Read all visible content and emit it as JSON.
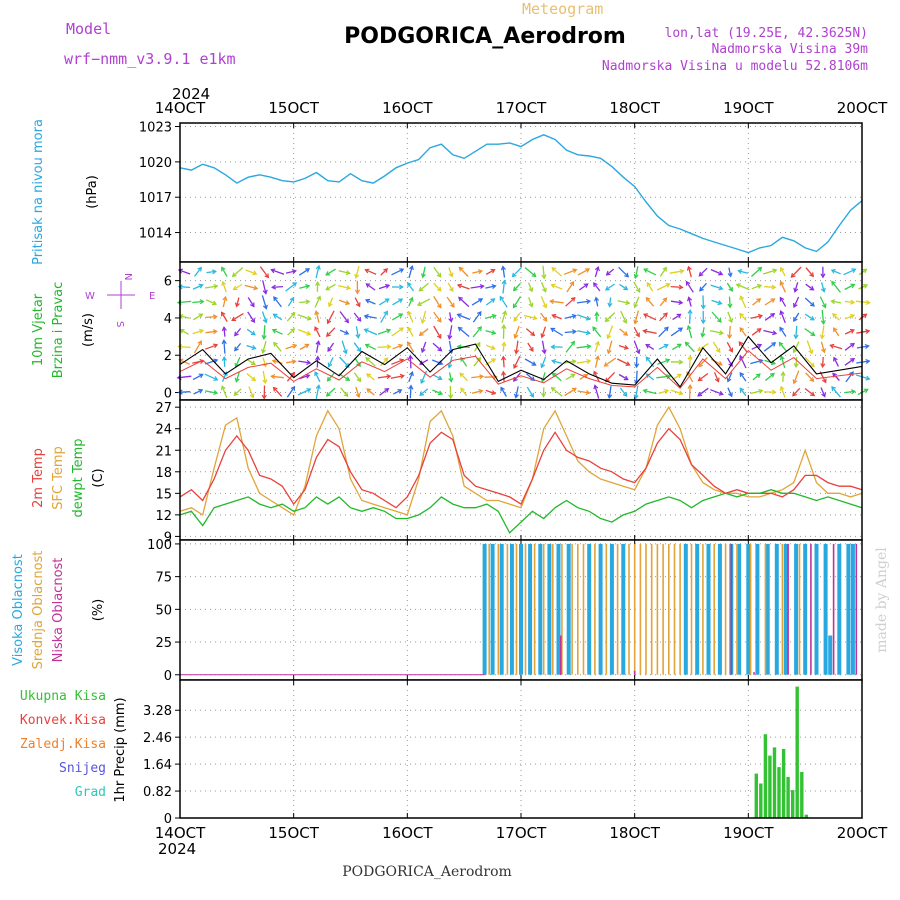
{
  "header": {
    "model_label": "Model",
    "model_name": "wrf−nmm_v3.9.1  e1km",
    "meteogram_label": "Meteogram",
    "station_title": "PODGORICA_Aerodrom",
    "lonlat": "lon,lat (19.25E, 42.3625N)",
    "altitude": "Nadmorska Visina 39m",
    "model_altitude": "Nadmorska Visina u modelu 52.8106m",
    "footer": "PODGORICA_Aerodrom",
    "credit": "made by Angel"
  },
  "time_axis": {
    "year": "2024",
    "labels": [
      "14OCT",
      "15OCT",
      "16OCT",
      "17OCT",
      "18OCT",
      "19OCT",
      "20OCT"
    ],
    "start_day": 14,
    "end_day": 20
  },
  "colors": {
    "pressure": "#29a8e0",
    "temp2m": "#e8413b",
    "sfc": "#e0a43a",
    "dew": "#22b82a",
    "high_cloud": "#29a8e0",
    "mid_cloud": "#e0a43a",
    "low_cloud": "#c0329a",
    "precip": "#33c233",
    "compass": "#b040d0"
  },
  "chart_data": [
    {
      "panel": "pressure",
      "type": "line",
      "ylabel_1": "Pritisak na nivou mora",
      "ylabel_2": "(hPa)",
      "ylim": [
        1011.5,
        1023.3
      ],
      "yticks": [
        1014,
        1017,
        1020,
        1023
      ],
      "ytick_labels": [
        "1014",
        "1017",
        "1020",
        "1023"
      ],
      "grid": true,
      "series": [
        {
          "x": [
            14.0,
            14.1,
            14.2,
            14.3,
            14.4,
            14.5,
            14.6,
            14.7,
            14.8,
            14.9,
            15.0,
            15.1,
            15.2,
            15.3,
            15.4,
            15.5,
            15.6,
            15.7,
            15.8,
            15.9,
            16.0,
            16.1,
            16.2,
            16.3,
            16.4,
            16.5,
            16.6,
            16.7,
            16.8,
            16.9,
            17.0,
            17.1,
            17.2,
            17.3,
            17.4,
            17.5,
            17.6,
            17.7,
            17.8,
            17.9,
            18.0,
            18.1,
            18.2,
            18.3,
            18.4,
            18.5,
            18.6,
            18.7,
            18.8,
            18.9,
            19.0,
            19.1,
            19.2,
            19.3,
            19.4,
            19.5,
            19.6,
            19.7,
            19.8,
            19.9,
            20.0
          ],
          "y": [
            1019.5,
            1019.3,
            1019.8,
            1019.5,
            1018.9,
            1018.2,
            1018.7,
            1018.9,
            1018.7,
            1018.4,
            1018.3,
            1018.6,
            1019.1,
            1018.4,
            1018.3,
            1019.0,
            1018.4,
            1018.2,
            1018.8,
            1019.5,
            1019.9,
            1020.2,
            1021.2,
            1021.5,
            1020.6,
            1020.3,
            1020.9,
            1021.5,
            1021.5,
            1021.6,
            1021.3,
            1021.9,
            1022.3,
            1021.9,
            1021.0,
            1020.6,
            1020.5,
            1020.3,
            1019.6,
            1018.7,
            1017.9,
            1016.6,
            1015.4,
            1014.6,
            1014.3,
            1013.9,
            1013.5,
            1013.2,
            1012.9,
            1012.6,
            1012.3,
            1012.7,
            1012.9,
            1013.6,
            1013.3,
            1012.7,
            1012.4,
            1013.2,
            1014.6,
            1015.9,
            1016.7
          ]
        }
      ]
    },
    {
      "panel": "wind",
      "type": "line",
      "ylabel_1": "10m Vjetar",
      "ylabel_2": "Brzina i Pravac",
      "ylabel_3": "(m/s)",
      "compass_labels": {
        "north": "N",
        "south": "S",
        "east": "E",
        "west": "W"
      },
      "ylim": [
        -0.4,
        7.0
      ],
      "yticks": [
        0,
        2,
        4,
        6
      ],
      "ytick_labels": [
        "0",
        "2",
        "4",
        "6"
      ],
      "grid": true,
      "series": [
        {
          "x": [
            14.0,
            14.2,
            14.4,
            14.6,
            14.8,
            15.0,
            15.2,
            15.4,
            15.6,
            15.8,
            16.0,
            16.2,
            16.4,
            16.6,
            16.8,
            17.0,
            17.2,
            17.4,
            17.6,
            17.8,
            18.0,
            18.2,
            18.4,
            18.6,
            18.8,
            19.0,
            19.2,
            19.4,
            19.6,
            19.8,
            20.0
          ],
          "y": [
            1.5,
            2.3,
            1.0,
            1.8,
            2.1,
            0.8,
            1.7,
            0.9,
            2.2,
            1.5,
            2.4,
            1.1,
            2.3,
            2.6,
            0.6,
            1.2,
            0.7,
            1.7,
            1.0,
            0.5,
            0.4,
            1.8,
            0.3,
            2.4,
            1.0,
            3.0,
            1.6,
            2.5,
            1.0,
            1.2,
            1.4
          ]
        }
      ],
      "dominant_directions_note": "",
      "arrow_colors": [
        "#8a2be2",
        "#2e6fe8",
        "#29b8e0",
        "#2fcf4a",
        "#9bd52a",
        "#e0d020",
        "#f0902a",
        "#e8413b"
      ]
    },
    {
      "panel": "temperature",
      "type": "line",
      "ylabel_1": "2m Temp",
      "ylabel_2": "SFC Temp",
      "ylabel_3": "dewpt Temp",
      "ylabel_4": "(C)",
      "ylim": [
        8.5,
        28
      ],
      "yticks": [
        9,
        12,
        15,
        18,
        21,
        24,
        27
      ],
      "ytick_labels": [
        "9",
        "12",
        "15",
        "18",
        "21",
        "24",
        "27"
      ],
      "grid": true,
      "series": [
        {
          "name": "2m Temp",
          "x": [
            14.0,
            14.1,
            14.2,
            14.3,
            14.4,
            14.5,
            14.6,
            14.7,
            14.8,
            14.9,
            15.0,
            15.1,
            15.2,
            15.3,
            15.4,
            15.5,
            15.6,
            15.7,
            15.8,
            15.9,
            16.0,
            16.1,
            16.2,
            16.3,
            16.4,
            16.5,
            16.6,
            16.7,
            16.8,
            16.9,
            17.0,
            17.1,
            17.2,
            17.3,
            17.4,
            17.5,
            17.6,
            17.7,
            17.8,
            17.9,
            18.0,
            18.1,
            18.2,
            18.3,
            18.4,
            18.5,
            18.6,
            18.7,
            18.8,
            18.9,
            19.0,
            19.1,
            19.2,
            19.3,
            19.4,
            19.5,
            19.6,
            19.7,
            19.8,
            19.9,
            20.0
          ],
          "y": [
            14.5,
            15.5,
            14.0,
            17.0,
            21.0,
            23.0,
            21.0,
            17.5,
            17.0,
            16.0,
            13.5,
            15.5,
            20.0,
            22.5,
            21.5,
            18.0,
            15.5,
            15.0,
            14.0,
            13.0,
            14.5,
            17.5,
            22.0,
            23.5,
            22.5,
            17.5,
            16.0,
            15.5,
            15.0,
            14.5,
            13.5,
            17.0,
            21.0,
            23.5,
            21.0,
            20.0,
            19.5,
            18.5,
            18.0,
            17.0,
            16.5,
            18.5,
            22.0,
            24.0,
            22.5,
            19.0,
            17.5,
            16.0,
            15.0,
            15.5,
            15.0,
            15.0,
            15.0,
            14.5,
            15.5,
            17.5,
            17.5,
            16.5,
            16.0,
            16.0,
            15.5
          ]
        },
        {
          "name": "SFC Temp",
          "x": [
            14.0,
            14.1,
            14.2,
            14.3,
            14.4,
            14.5,
            14.6,
            14.7,
            14.8,
            14.9,
            15.0,
            15.1,
            15.2,
            15.3,
            15.4,
            15.5,
            15.6,
            15.7,
            15.8,
            15.9,
            16.0,
            16.1,
            16.2,
            16.3,
            16.4,
            16.5,
            16.6,
            16.7,
            16.8,
            16.9,
            17.0,
            17.1,
            17.2,
            17.3,
            17.4,
            17.5,
            17.6,
            17.7,
            17.8,
            17.9,
            18.0,
            18.1,
            18.2,
            18.3,
            18.4,
            18.5,
            18.6,
            18.7,
            18.8,
            18.9,
            19.0,
            19.1,
            19.2,
            19.3,
            19.4,
            19.5,
            19.6,
            19.7,
            19.8,
            19.9,
            20.0
          ],
          "y": [
            12.5,
            13.0,
            12.0,
            18.5,
            24.5,
            25.5,
            18.5,
            15.0,
            14.0,
            13.0,
            12.0,
            16.0,
            23.0,
            26.5,
            24.0,
            17.0,
            14.0,
            13.5,
            13.0,
            12.5,
            12.0,
            17.0,
            25.0,
            26.5,
            23.0,
            16.0,
            15.0,
            14.0,
            14.0,
            13.5,
            13.0,
            17.0,
            24.0,
            26.5,
            23.0,
            19.5,
            18.0,
            17.0,
            16.5,
            16.0,
            15.5,
            18.5,
            24.5,
            27.0,
            24.0,
            19.0,
            16.5,
            15.5,
            15.0,
            15.0,
            14.5,
            14.5,
            15.0,
            15.5,
            16.5,
            21.0,
            16.5,
            15.0,
            15.0,
            14.5,
            15.0
          ]
        },
        {
          "name": "dewpt Temp",
          "x": [
            14.0,
            14.1,
            14.2,
            14.3,
            14.4,
            14.5,
            14.6,
            14.7,
            14.8,
            14.9,
            15.0,
            15.1,
            15.2,
            15.3,
            15.4,
            15.5,
            15.6,
            15.7,
            15.8,
            15.9,
            16.0,
            16.1,
            16.2,
            16.3,
            16.4,
            16.5,
            16.6,
            16.7,
            16.8,
            16.9,
            17.0,
            17.1,
            17.2,
            17.3,
            17.4,
            17.5,
            17.6,
            17.7,
            17.8,
            17.9,
            18.0,
            18.1,
            18.2,
            18.3,
            18.4,
            18.5,
            18.6,
            18.7,
            18.8,
            18.9,
            19.0,
            19.1,
            19.2,
            19.3,
            19.4,
            19.5,
            19.6,
            19.7,
            19.8,
            19.9,
            20.0
          ],
          "y": [
            12.0,
            12.5,
            10.5,
            13.0,
            13.5,
            14.0,
            14.5,
            13.5,
            13.0,
            13.5,
            12.5,
            13.0,
            14.5,
            13.5,
            14.5,
            13.0,
            12.5,
            13.0,
            12.5,
            11.5,
            11.5,
            12.0,
            13.0,
            14.5,
            13.5,
            13.0,
            13.0,
            13.5,
            12.5,
            9.5,
            11.0,
            12.5,
            11.5,
            13.0,
            14.0,
            13.0,
            12.5,
            11.5,
            11.0,
            12.0,
            12.5,
            13.5,
            14.0,
            14.5,
            14.0,
            13.0,
            14.0,
            14.5,
            15.0,
            14.5,
            15.0,
            15.0,
            15.5,
            15.0,
            15.0,
            14.5,
            14.0,
            14.5,
            14.0,
            13.5,
            13.0
          ]
        }
      ]
    },
    {
      "panel": "clouds",
      "type": "bar",
      "ylabel_1": "Visoka Oblacnost",
      "ylabel_2": "Srednja Oblacnost",
      "ylabel_3": "Niska Oblacnost",
      "ylabel_4": "(%)",
      "ylim": [
        -4,
        103
      ],
      "yticks": [
        0,
        25,
        50,
        75,
        100
      ],
      "ytick_labels": [
        "0",
        "25",
        "50",
        "75",
        "100"
      ],
      "grid": true,
      "series": [
        {
          "name": "Visoka Oblacnost",
          "x": [
            16.68,
            16.75,
            16.83,
            16.92,
            17.0,
            17.08,
            17.17,
            17.25,
            17.33,
            17.42,
            17.6,
            17.7,
            17.8,
            17.9,
            18.45,
            18.55,
            18.65,
            18.75,
            18.85,
            18.92,
            19.0,
            19.08,
            19.17,
            19.25,
            19.33,
            19.42,
            19.5,
            19.6,
            19.68,
            19.72,
            19.8,
            19.88,
            19.92
          ],
          "y": [
            100,
            100,
            100,
            100,
            100,
            100,
            100,
            100,
            100,
            100,
            100,
            100,
            100,
            100,
            100,
            100,
            100,
            100,
            100,
            100,
            100,
            100,
            100,
            100,
            100,
            100,
            100,
            100,
            100,
            30,
            100,
            100,
            100
          ]
        },
        {
          "name": "Srednja Oblacnost",
          "x": [
            16.72,
            16.8,
            16.88,
            16.96,
            17.04,
            17.12,
            17.2,
            17.28,
            17.36,
            17.45,
            17.5,
            17.55,
            17.65,
            17.75,
            17.85,
            17.95,
            18.0,
            18.05,
            18.1,
            18.15,
            18.2,
            18.25,
            18.3,
            18.35,
            18.4,
            18.5,
            18.6,
            18.7,
            18.8,
            18.9,
            19.02,
            19.15,
            19.3,
            19.45
          ],
          "y": [
            100,
            100,
            100,
            100,
            100,
            100,
            100,
            100,
            100,
            100,
            100,
            100,
            100,
            100,
            100,
            100,
            100,
            100,
            100,
            100,
            100,
            100,
            100,
            100,
            100,
            100,
            100,
            100,
            100,
            100,
            100,
            100,
            100,
            100
          ]
        },
        {
          "name": "Niska Oblacnost",
          "x": [
            17.35,
            18.0,
            18.85,
            19.05,
            19.35,
            19.55,
            19.75,
            19.95
          ],
          "y": [
            30,
            3,
            100,
            2,
            100,
            100,
            100,
            100
          ]
        }
      ]
    },
    {
      "panel": "precipitation",
      "type": "bar",
      "legend": [
        "Ukupna Kisa",
        "Konvek.Kisa",
        "Zaledj.Kisa",
        "Snijeg",
        "Grad"
      ],
      "legend_colors": [
        "#33c233",
        "#e8413b",
        "#f0802a",
        "#5555dd",
        "#2ec8b8"
      ],
      "ylabel_1": "1hr Precip",
      "ylabel_2": "(mm)",
      "ylim": [
        0,
        4.2
      ],
      "yticks": [
        0,
        0.82,
        1.64,
        2.46,
        3.28
      ],
      "ytick_labels": [
        "0",
        "0.82",
        "1.64",
        "2.46",
        "3.28"
      ],
      "grid": true,
      "series": [
        {
          "name": "Ukupna Kisa",
          "x": [
            19.07,
            19.11,
            19.15,
            19.19,
            19.23,
            19.27,
            19.31,
            19.35,
            19.39,
            19.43,
            19.47,
            19.51
          ],
          "y": [
            1.35,
            1.05,
            2.55,
            1.9,
            2.15,
            1.55,
            2.1,
            1.25,
            0.85,
            4.0,
            1.4,
            0.1
          ]
        }
      ]
    }
  ]
}
